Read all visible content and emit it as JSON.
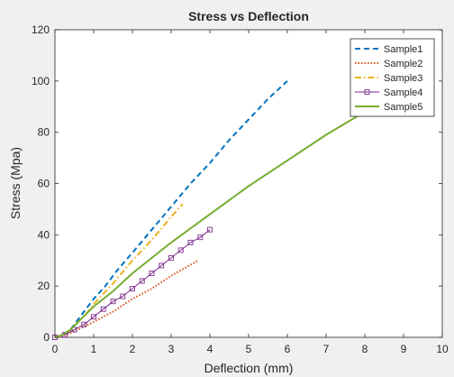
{
  "chart_data": {
    "type": "line",
    "title": "Stress vs Deflection",
    "xlabel": "Deflection (mm)",
    "ylabel": "Stress (Mpa)",
    "xlim": [
      0,
      10
    ],
    "ylim": [
      0,
      120
    ],
    "xticks": [
      0,
      1,
      2,
      3,
      4,
      5,
      6,
      7,
      8,
      9,
      10
    ],
    "yticks": [
      0,
      20,
      40,
      60,
      80,
      100,
      120
    ],
    "grid": false,
    "legend_position": "top-right",
    "series": [
      {
        "name": "Sample1",
        "color": "#0072bd",
        "style": "dashed",
        "x": [
          0,
          0.2,
          0.4,
          0.6,
          0.8,
          1.0,
          1.3,
          1.6,
          2.0,
          2.5,
          3.0,
          3.5,
          4.0,
          4.5,
          5.0,
          5.5,
          6.0
        ],
        "y": [
          0,
          1,
          3,
          7,
          11,
          15,
          20,
          26,
          33,
          42,
          51,
          60,
          68,
          77,
          85,
          93,
          100
        ]
      },
      {
        "name": "Sample2",
        "color": "#d95319",
        "style": "dotted",
        "x": [
          0,
          0.3,
          0.6,
          1.0,
          1.5,
          2.0,
          2.5,
          3.0,
          3.7
        ],
        "y": [
          0,
          1,
          3,
          6,
          10,
          15,
          19,
          24,
          30
        ]
      },
      {
        "name": "Sample3",
        "color": "#edb120",
        "style": "dashdot",
        "x": [
          0,
          0.2,
          0.4,
          0.6,
          0.8,
          1.0,
          1.5,
          2.0,
          2.5,
          3.0,
          3.3
        ],
        "y": [
          0,
          1,
          3,
          6,
          9,
          13,
          21,
          30,
          38,
          47,
          52
        ]
      },
      {
        "name": "Sample4",
        "color": "#7e2f8e",
        "style": "solid-square-markers",
        "x": [
          0,
          0.25,
          0.5,
          0.75,
          1.0,
          1.25,
          1.5,
          1.75,
          2.0,
          2.25,
          2.5,
          2.75,
          3.0,
          3.25,
          3.5,
          3.75,
          4.0
        ],
        "y": [
          0,
          1,
          3,
          5,
          8,
          11,
          14,
          16,
          19,
          22,
          25,
          28,
          31,
          34,
          37,
          39,
          42
        ]
      },
      {
        "name": "Sample5",
        "color": "#77ac30",
        "style": "solid",
        "x": [
          0,
          0.2,
          0.4,
          0.6,
          0.8,
          1.0,
          1.5,
          2.0,
          3.0,
          4.0,
          5.0,
          6.0,
          7.0,
          8.0,
          8.5
        ],
        "y": [
          0,
          1,
          3,
          6,
          9,
          12,
          18,
          25,
          37,
          48,
          59,
          69,
          79,
          88,
          92
        ]
      }
    ]
  }
}
